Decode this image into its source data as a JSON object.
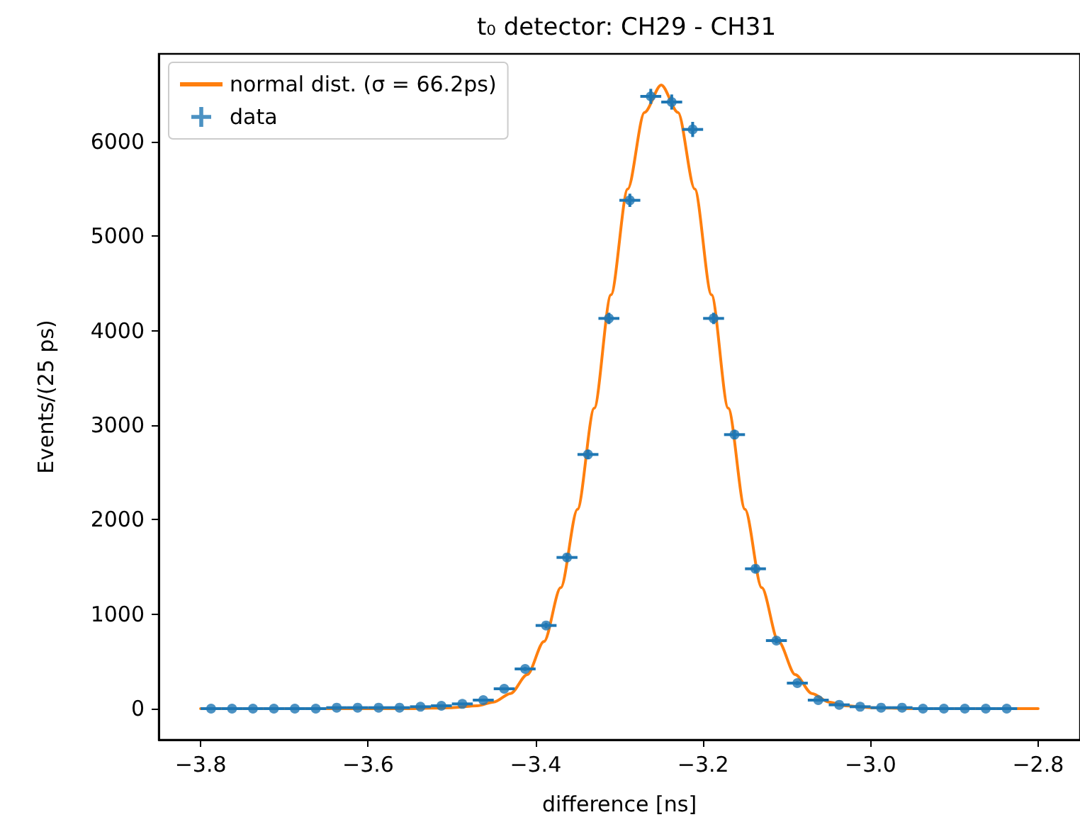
{
  "chart_data": {
    "type": "scatter",
    "title": "t₀ detector: CH29 - CH31",
    "xlabel": "difference [ns]",
    "ylabel": "Events/(25 ps)",
    "xlim": [
      -3.85,
      -2.75
    ],
    "ylim": [
      -330,
      6930
    ],
    "xticks": [
      {
        "value": -3.8,
        "label": "−3.8"
      },
      {
        "value": -3.6,
        "label": "−3.6"
      },
      {
        "value": -3.4,
        "label": "−3.4"
      },
      {
        "value": -3.2,
        "label": "−3.2"
      },
      {
        "value": -3.0,
        "label": "−3.0"
      },
      {
        "value": -2.8,
        "label": "−2.8"
      }
    ],
    "yticks": [
      0,
      1000,
      2000,
      3000,
      4000,
      5000,
      6000
    ],
    "grid": false,
    "legend": "top left",
    "series": [
      {
        "name": "normal dist. (σ = 66.2ps)",
        "type": "line",
        "color": "#ff7f0e",
        "marker": "none",
        "line_style": "solid",
        "x": [
          -3.8,
          -3.55,
          -3.5,
          -3.47,
          -3.45,
          -3.43,
          -3.41,
          -3.39,
          -3.37,
          -3.35,
          -3.33,
          -3.31,
          -3.29,
          -3.27,
          -3.25,
          -3.23,
          -3.21,
          -3.19,
          -3.17,
          -3.15,
          -3.13,
          -3.11,
          -3.09,
          -3.07,
          -3.05,
          -3.03,
          -3.0,
          -2.95,
          -2.8
        ],
        "values": [
          0,
          0,
          10,
          30,
          70,
          160,
          360,
          710,
          1280,
          2110,
          3180,
          4380,
          5500,
          6310,
          6600,
          6310,
          5500,
          4380,
          3180,
          2110,
          1280,
          710,
          360,
          160,
          70,
          30,
          10,
          0,
          0
        ]
      },
      {
        "name": "data",
        "color": "#1f77b4",
        "marker": "circle",
        "x": [
          -3.7875,
          -3.7625,
          -3.7375,
          -3.7125,
          -3.6875,
          -3.6625,
          -3.6375,
          -3.6125,
          -3.5875,
          -3.5625,
          -3.5375,
          -3.5125,
          -3.4875,
          -3.4625,
          -3.4375,
          -3.4125,
          -3.3875,
          -3.3625,
          -3.3375,
          -3.3125,
          -3.2875,
          -3.2625,
          -3.2375,
          -3.2125,
          -3.1875,
          -3.1625,
          -3.1375,
          -3.1125,
          -3.0875,
          -3.0625,
          -3.0375,
          -3.0125,
          -2.9875,
          -2.9625,
          -2.9375,
          -2.9125,
          -2.8875,
          -2.8625,
          -2.8375
        ],
        "values": [
          0,
          0,
          0,
          0,
          0,
          0,
          10,
          10,
          10,
          10,
          20,
          30,
          50,
          90,
          210,
          420,
          880,
          1600,
          2690,
          4130,
          5380,
          6480,
          6420,
          6130,
          4130,
          2900,
          1480,
          720,
          270,
          90,
          40,
          20,
          10,
          10,
          0,
          0,
          0,
          0,
          0
        ],
        "errors": [
          null,
          null,
          null,
          null,
          null,
          null,
          null,
          null,
          null,
          null,
          null,
          null,
          null,
          10,
          10,
          20,
          30,
          40,
          50,
          60,
          70,
          80,
          80,
          80,
          60,
          50,
          40,
          30,
          20,
          10,
          null,
          null,
          null,
          null,
          null,
          null,
          null,
          null,
          null
        ],
        "xerrors": [
          0.0125,
          0.0125,
          0.0125,
          0.0125,
          0.0125,
          0.0125,
          0.0125,
          0.0125,
          0.0125,
          0.0125,
          0.0125,
          0.0125,
          0.0125,
          0.0125,
          0.0125,
          0.0125,
          0.0125,
          0.0125,
          0.0125,
          0.0125,
          0.0125,
          0.0125,
          0.0125,
          0.0125,
          0.0125,
          0.0125,
          0.0125,
          0.0125,
          0.0125,
          0.0125,
          0.0125,
          0.0125,
          0.0125,
          0.0125,
          0.0125,
          0.0125,
          0.0125,
          0.0125,
          0.0125
        ]
      }
    ]
  }
}
